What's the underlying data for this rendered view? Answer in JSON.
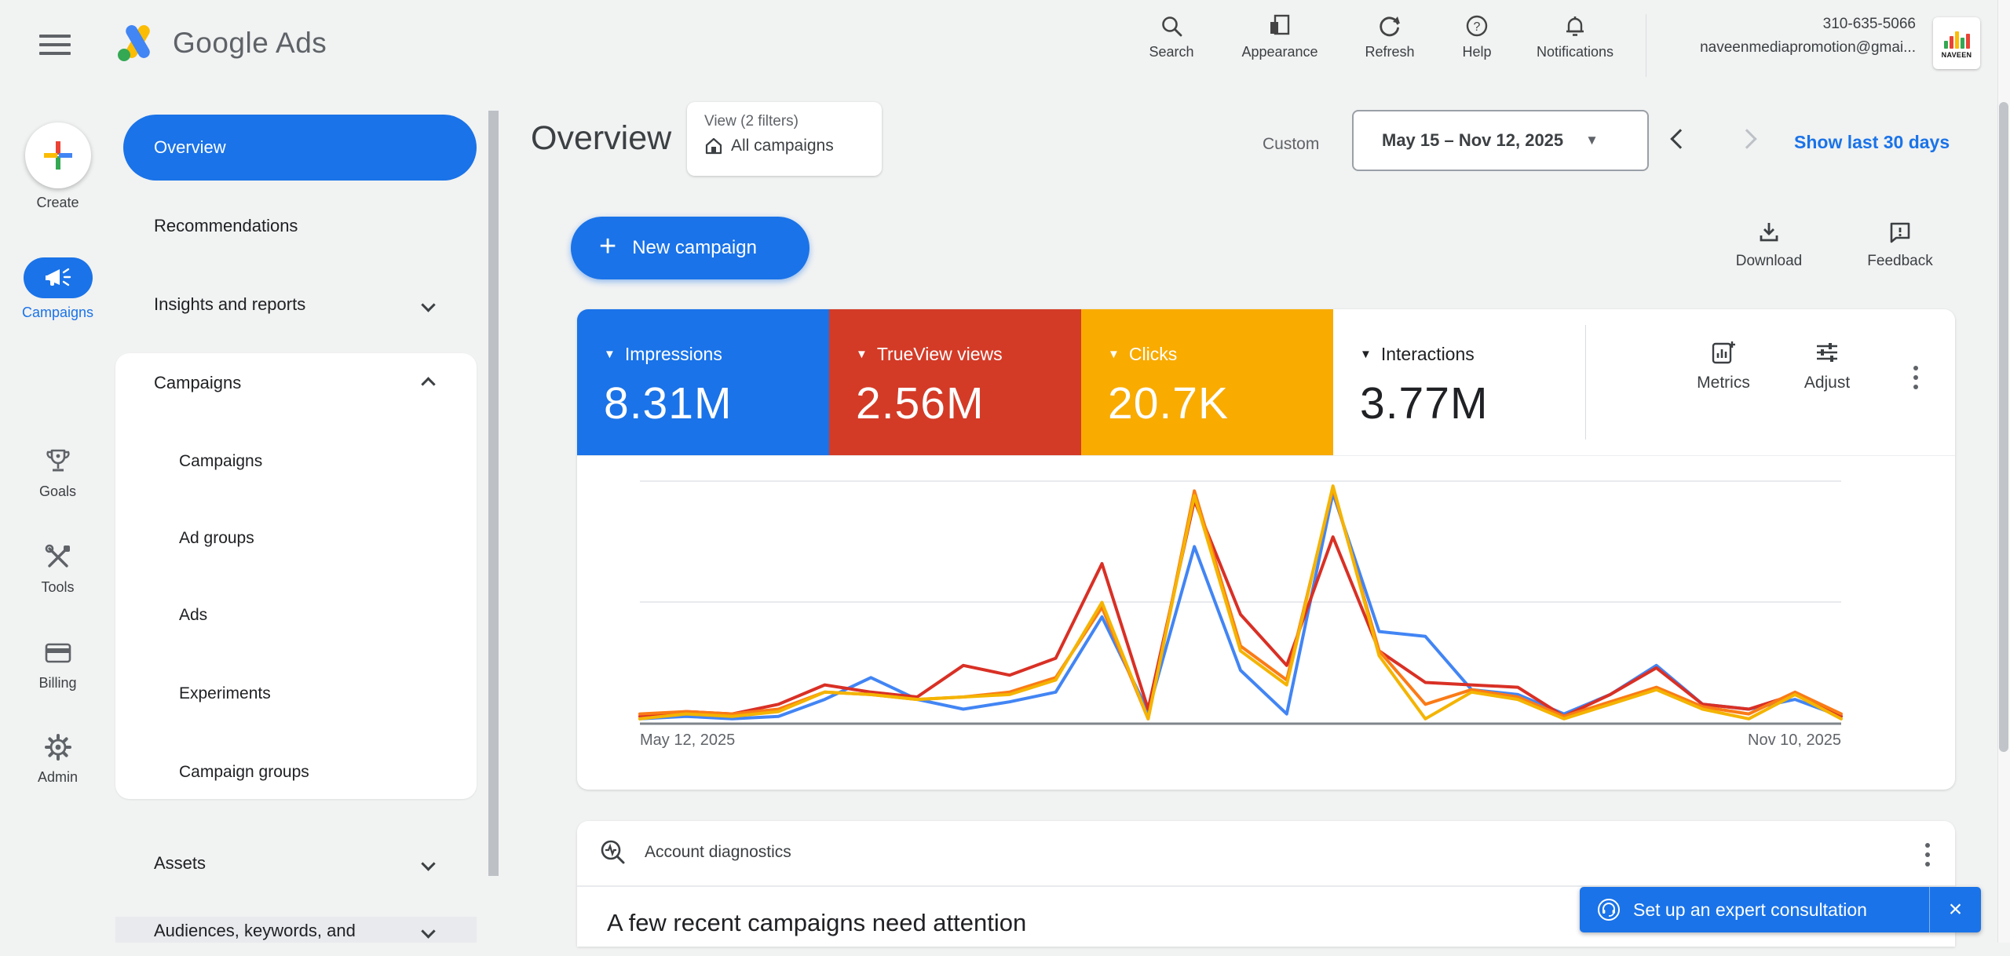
{
  "header": {
    "logo_text": "Google Ads",
    "actions": [
      "Search",
      "Appearance",
      "Refresh",
      "Help",
      "Notifications"
    ],
    "account": {
      "phone": "310-635-5066",
      "email": "naveenmediapromotion@gmai...",
      "avatar_text": "NAVEEN"
    }
  },
  "left_rail": {
    "items": [
      "Create",
      "Campaigns",
      "Goals",
      "Tools",
      "Billing",
      "Admin"
    ],
    "active_item": "Campaigns"
  },
  "nav": {
    "overview": "Overview",
    "recommendations": "Recommendations",
    "insights": "Insights and reports",
    "campaigns_header": "Campaigns",
    "campaigns_children": [
      "Campaigns",
      "Ad groups",
      "Ads",
      "Experiments",
      "Campaign groups"
    ],
    "assets": "Assets",
    "audiences": "Audiences, keywords, and",
    "active_item": "Overview"
  },
  "toolbar": {
    "page_title": "Overview",
    "view_chip_line1": "View (2 filters)",
    "view_chip_line2": "All campaigns",
    "custom_label": "Custom",
    "date_range": "May 15 – Nov 12, 2025",
    "caret": "▼",
    "show_last_label": "Show last 30 days",
    "new_campaign_label": "New campaign",
    "plus": "+",
    "download_label": "Download",
    "feedback_label": "Feedback"
  },
  "scorecards": [
    {
      "label": "Impressions",
      "value": "8.31M",
      "bg": "#1a73e8",
      "fg": "#ffffff"
    },
    {
      "label": "TrueView views",
      "value": "2.56M",
      "bg": "#d33b27",
      "fg": "#ffffff"
    },
    {
      "label": "Clicks",
      "value": "20.7K",
      "bg": "#f9ab00",
      "fg": "#ffffff"
    },
    {
      "label": "Interactions",
      "value": "3.77M",
      "bg": "#ffffff",
      "fg": "#202124"
    }
  ],
  "chart_controls": {
    "metrics_label": "Metrics",
    "adjust_label": "Adjust"
  },
  "chart_data": {
    "type": "line",
    "title": "",
    "x_start_label": "May 12, 2025",
    "x_end_label": "Nov 10, 2025",
    "x_points": 27,
    "x_interval": "weekly",
    "ylim": [
      0,
      100
    ],
    "y_axis_labeled": false,
    "grid": "3 horizontal lines (top, middle, dark baseline), no vertical grid",
    "legend_position": "none (colors match scorecards)",
    "note": "y values are normalized 0-100 (% of plot height); axis shows no numeric labels",
    "series": [
      {
        "name": "Impressions",
        "color": "#4285f4",
        "values": [
          2,
          3,
          2,
          3,
          10,
          19,
          10,
          6,
          9,
          13,
          44,
          5,
          73,
          22,
          4,
          95,
          38,
          36,
          14,
          12,
          4,
          12,
          24,
          8,
          6,
          10,
          3
        ]
      },
      {
        "name": "TrueView views",
        "color": "#d93025",
        "values": [
          3,
          5,
          4,
          8,
          16,
          13,
          11,
          24,
          20,
          27,
          66,
          6,
          92,
          45,
          24,
          77,
          30,
          17,
          16,
          15,
          3,
          12,
          23,
          8,
          6,
          12,
          3
        ]
      },
      {
        "name": "Clicks",
        "color": "#f4b400",
        "values": [
          2,
          4,
          3,
          5,
          13,
          12,
          10,
          11,
          12,
          18,
          50,
          2,
          94,
          30,
          16,
          98,
          28,
          2,
          13,
          10,
          2,
          8,
          14,
          6,
          2,
          12,
          2
        ]
      },
      {
        "name": "Interactions",
        "color": "#fa7b17",
        "values": [
          4,
          5,
          4,
          6,
          13,
          12,
          10,
          11,
          13,
          19,
          48,
          2,
          96,
          32,
          18,
          97,
          30,
          8,
          14,
          11,
          3,
          9,
          15,
          7,
          4,
          13,
          4
        ]
      }
    ]
  },
  "diagnostics": {
    "title": "Account diagnostics",
    "heading": "A few recent campaigns need attention"
  },
  "banner": {
    "label": "Set up an expert consultation",
    "close": "×",
    "bg": "#1a73e8"
  },
  "colors": {
    "accent_blue": "#1a73e8",
    "page_bg": "#f1f2f2",
    "text_primary": "#202124",
    "text_secondary": "#5f6368"
  }
}
